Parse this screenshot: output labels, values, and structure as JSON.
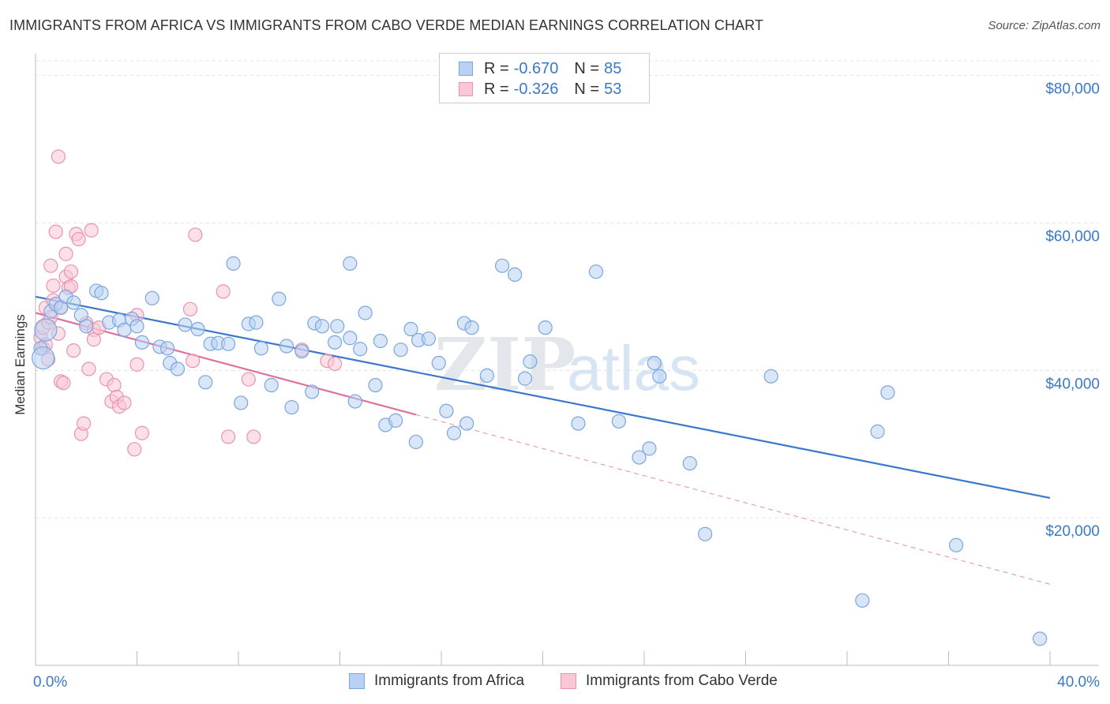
{
  "title": "IMMIGRANTS FROM AFRICA VS IMMIGRANTS FROM CABO VERDE MEDIAN EARNINGS CORRELATION CHART",
  "source": "Source: ZipAtlas.com",
  "watermark": {
    "zip": "ZIP",
    "atlas": "atlas"
  },
  "legend": {
    "r_label": "R =",
    "n_label": "N =",
    "rows": [
      {
        "r": "-0.670",
        "n": "85",
        "fill": "#b8d1f3",
        "stroke": "#7aa6e0"
      },
      {
        "r": "-0.326",
        "n": "53",
        "fill": "#f9c7d6",
        "stroke": "#e993b0"
      }
    ]
  },
  "bottom_legend": [
    {
      "label": "Immigrants from Africa",
      "fill": "#b8d1f3",
      "stroke": "#7aa6e0"
    },
    {
      "label": "Immigrants from Cabo Verde",
      "fill": "#f9c7d6",
      "stroke": "#e993b0"
    }
  ],
  "chart_data": {
    "type": "scatter",
    "title": "IMMIGRANTS FROM AFRICA VS IMMIGRANTS FROM CABO VERDE MEDIAN EARNINGS CORRELATION CHART",
    "xlabel": "",
    "ylabel": "Median Earnings",
    "xlim": [
      0,
      40
    ],
    "ylim": [
      0,
      82000
    ],
    "x_tick_labels": [
      "0.0%",
      "40.0%"
    ],
    "y_ticks": [
      20000,
      40000,
      60000,
      80000
    ],
    "y_tick_labels": [
      "$20,000",
      "$40,000",
      "$60,000",
      "$80,000"
    ],
    "grid": true,
    "legend_position": "top-center",
    "colors": {
      "africa": "#3b78c9",
      "africa_fill": "#b8d1f3",
      "cabo": "#e0709a",
      "cabo_fill": "#f9c7d6",
      "axis_text": "#3b78c9"
    },
    "series": [
      {
        "name": "Immigrants from Africa",
        "r": -0.67,
        "n": 85,
        "trend": {
          "x": [
            0.0,
            40.0
          ],
          "y": [
            50000,
            22700
          ]
        },
        "points": [
          [
            0.2,
            43000
          ],
          [
            0.4,
            45500
          ],
          [
            0.6,
            48000
          ],
          [
            0.8,
            49000
          ],
          [
            1.0,
            48500
          ],
          [
            1.2,
            50000
          ],
          [
            1.5,
            49200
          ],
          [
            1.8,
            47500
          ],
          [
            2.0,
            46000
          ],
          [
            2.4,
            50800
          ],
          [
            2.6,
            50500
          ],
          [
            2.9,
            46500
          ],
          [
            3.3,
            46800
          ],
          [
            3.5,
            45500
          ],
          [
            3.8,
            47000
          ],
          [
            4.0,
            46000
          ],
          [
            4.2,
            43800
          ],
          [
            4.6,
            49800
          ],
          [
            4.9,
            43200
          ],
          [
            5.2,
            43000
          ],
          [
            5.3,
            41000
          ],
          [
            5.6,
            40200
          ],
          [
            5.9,
            46200
          ],
          [
            6.4,
            45600
          ],
          [
            6.7,
            38400
          ],
          [
            6.9,
            43600
          ],
          [
            7.2,
            43700
          ],
          [
            7.6,
            43600
          ],
          [
            7.8,
            54500
          ],
          [
            8.1,
            35600
          ],
          [
            8.4,
            46300
          ],
          [
            8.7,
            46500
          ],
          [
            8.9,
            43000
          ],
          [
            9.3,
            38000
          ],
          [
            9.6,
            49700
          ],
          [
            9.9,
            43300
          ],
          [
            10.1,
            35000
          ],
          [
            10.5,
            42600
          ],
          [
            10.9,
            37100
          ],
          [
            11.0,
            46400
          ],
          [
            11.3,
            46000
          ],
          [
            11.8,
            43800
          ],
          [
            11.9,
            46000
          ],
          [
            12.4,
            44400
          ],
          [
            12.4,
            54500
          ],
          [
            12.6,
            35800
          ],
          [
            12.8,
            42900
          ],
          [
            13.0,
            47800
          ],
          [
            13.4,
            38000
          ],
          [
            13.6,
            44000
          ],
          [
            13.8,
            32600
          ],
          [
            14.2,
            33200
          ],
          [
            14.4,
            42800
          ],
          [
            14.8,
            45600
          ],
          [
            15.0,
            30300
          ],
          [
            15.1,
            44100
          ],
          [
            15.5,
            44300
          ],
          [
            15.9,
            41000
          ],
          [
            16.2,
            34500
          ],
          [
            16.5,
            31500
          ],
          [
            16.9,
            46400
          ],
          [
            17.0,
            32800
          ],
          [
            17.2,
            45800
          ],
          [
            17.8,
            39300
          ],
          [
            18.4,
            54200
          ],
          [
            18.9,
            53000
          ],
          [
            19.3,
            38900
          ],
          [
            19.5,
            41200
          ],
          [
            20.1,
            45800
          ],
          [
            21.4,
            32800
          ],
          [
            22.1,
            53400
          ],
          [
            23.0,
            33100
          ],
          [
            23.8,
            28200
          ],
          [
            24.2,
            29400
          ],
          [
            24.4,
            41000
          ],
          [
            24.6,
            39200
          ],
          [
            25.8,
            27400
          ],
          [
            26.4,
            17800
          ],
          [
            29.0,
            39200
          ],
          [
            32.6,
            8800
          ],
          [
            33.2,
            31700
          ],
          [
            33.6,
            37000
          ],
          [
            36.3,
            16300
          ],
          [
            39.6,
            3600
          ],
          [
            0.3,
            41700
          ]
        ]
      },
      {
        "name": "Immigrants from Cabo Verde",
        "r": -0.326,
        "n": 53,
        "trend": {
          "x": [
            0.0,
            15.0
          ],
          "y": [
            47800,
            34000
          ]
        },
        "trend_extended": {
          "x": [
            15.0,
            40.0
          ],
          "y": [
            34000,
            11000
          ]
        },
        "points": [
          [
            0.2,
            44500
          ],
          [
            0.3,
            45800
          ],
          [
            0.3,
            43000
          ],
          [
            0.4,
            48500
          ],
          [
            0.5,
            41500
          ],
          [
            0.5,
            46500
          ],
          [
            0.6,
            54200
          ],
          [
            0.7,
            51500
          ],
          [
            0.7,
            49500
          ],
          [
            0.8,
            58800
          ],
          [
            0.9,
            69000
          ],
          [
            0.9,
            45000
          ],
          [
            1.0,
            38500
          ],
          [
            1.1,
            38300
          ],
          [
            1.2,
            55800
          ],
          [
            1.2,
            52700
          ],
          [
            1.3,
            51200
          ],
          [
            1.4,
            53400
          ],
          [
            1.4,
            51400
          ],
          [
            1.5,
            42700
          ],
          [
            1.6,
            58500
          ],
          [
            1.7,
            57800
          ],
          [
            1.8,
            31400
          ],
          [
            1.9,
            32800
          ],
          [
            2.0,
            46400
          ],
          [
            2.1,
            40200
          ],
          [
            2.2,
            59000
          ],
          [
            2.3,
            45500
          ],
          [
            2.3,
            44200
          ],
          [
            2.5,
            45800
          ],
          [
            2.8,
            38800
          ],
          [
            3.0,
            35800
          ],
          [
            3.1,
            38000
          ],
          [
            3.2,
            36400
          ],
          [
            3.3,
            35100
          ],
          [
            3.5,
            35600
          ],
          [
            3.9,
            29300
          ],
          [
            4.0,
            40800
          ],
          [
            4.0,
            47500
          ],
          [
            4.2,
            31500
          ],
          [
            6.1,
            48300
          ],
          [
            6.2,
            41300
          ],
          [
            6.3,
            58400
          ],
          [
            7.4,
            50700
          ],
          [
            7.6,
            31000
          ],
          [
            8.4,
            38800
          ],
          [
            8.6,
            31000
          ],
          [
            10.5,
            42800
          ],
          [
            11.5,
            41300
          ],
          [
            11.8,
            40900
          ],
          [
            0.4,
            43500
          ],
          [
            0.6,
            47200
          ],
          [
            1.0,
            48600
          ]
        ]
      }
    ]
  }
}
